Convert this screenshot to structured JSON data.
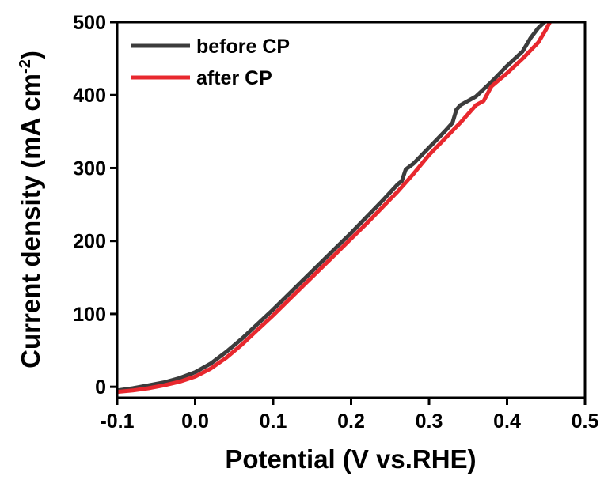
{
  "chart_data": {
    "type": "line",
    "title": "",
    "xlabel": "Potential (V vs.RHE)",
    "ylabel_main": "Current density (mA cm",
    "ylabel_sup": "-2",
    "ylabel_close": ")",
    "xlim": [
      -0.1,
      0.5
    ],
    "ylim": [
      -15,
      500
    ],
    "xticks": [
      -0.1,
      0.0,
      0.1,
      0.2,
      0.3,
      0.4,
      0.5
    ],
    "xtick_labels": [
      "-0.1",
      "0.0",
      "0.1",
      "0.2",
      "0.3",
      "0.4",
      "0.5"
    ],
    "yticks": [
      0,
      100,
      200,
      300,
      400,
      500
    ],
    "ytick_labels": [
      "0",
      "100",
      "200",
      "300",
      "400",
      "500"
    ],
    "grid": false,
    "legend_position": "top-left",
    "series": [
      {
        "name": "before CP",
        "color": "#3c3c3c",
        "points": [
          [
            -0.1,
            -5
          ],
          [
            -0.08,
            -2
          ],
          [
            -0.06,
            2
          ],
          [
            -0.04,
            6
          ],
          [
            -0.02,
            12
          ],
          [
            0.0,
            20
          ],
          [
            0.02,
            32
          ],
          [
            0.04,
            48
          ],
          [
            0.06,
            66
          ],
          [
            0.08,
            86
          ],
          [
            0.1,
            106
          ],
          [
            0.12,
            127
          ],
          [
            0.14,
            148
          ],
          [
            0.16,
            169
          ],
          [
            0.18,
            190
          ],
          [
            0.2,
            211
          ],
          [
            0.22,
            233
          ],
          [
            0.24,
            255
          ],
          [
            0.26,
            278
          ],
          [
            0.265,
            282
          ],
          [
            0.27,
            298
          ],
          [
            0.28,
            306
          ],
          [
            0.3,
            328
          ],
          [
            0.32,
            350
          ],
          [
            0.33,
            362
          ],
          [
            0.335,
            380
          ],
          [
            0.34,
            386
          ],
          [
            0.36,
            398
          ],
          [
            0.38,
            418
          ],
          [
            0.4,
            440
          ],
          [
            0.42,
            460
          ],
          [
            0.43,
            478
          ],
          [
            0.44,
            492
          ],
          [
            0.448,
            500
          ]
        ]
      },
      {
        "name": "after CP",
        "color": "#e8282e",
        "points": [
          [
            -0.1,
            -7
          ],
          [
            -0.08,
            -5
          ],
          [
            -0.06,
            -2
          ],
          [
            -0.04,
            2
          ],
          [
            -0.02,
            7
          ],
          [
            0.0,
            14
          ],
          [
            0.02,
            25
          ],
          [
            0.04,
            40
          ],
          [
            0.06,
            58
          ],
          [
            0.08,
            78
          ],
          [
            0.1,
            98
          ],
          [
            0.12,
            119
          ],
          [
            0.14,
            140
          ],
          [
            0.16,
            161
          ],
          [
            0.18,
            182
          ],
          [
            0.2,
            203
          ],
          [
            0.22,
            224
          ],
          [
            0.24,
            246
          ],
          [
            0.26,
            268
          ],
          [
            0.28,
            292
          ],
          [
            0.3,
            318
          ],
          [
            0.32,
            340
          ],
          [
            0.34,
            362
          ],
          [
            0.36,
            386
          ],
          [
            0.37,
            392
          ],
          [
            0.38,
            412
          ],
          [
            0.4,
            430
          ],
          [
            0.42,
            450
          ],
          [
            0.44,
            472
          ],
          [
            0.45,
            490
          ],
          [
            0.455,
            500
          ]
        ]
      }
    ]
  }
}
